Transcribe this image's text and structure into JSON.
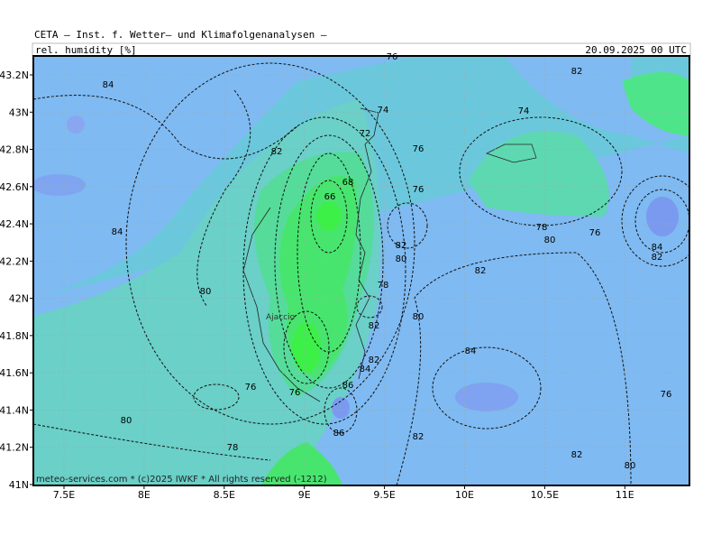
{
  "header": {
    "institute": "CETA — Inst. f. Wetter— und Klimafolgenanalysen —",
    "variable": "rel. humidity [%]",
    "datetime": "20.09.2025 00 UTC"
  },
  "footer": "meteo-services.com * (c)2025 IWKF * All rights reserved (-1212)",
  "y_axis": [
    "43.2N",
    "43N",
    "42.8N",
    "42.6N",
    "42.4N",
    "42.2N",
    "42N",
    "41.8N",
    "41.6N",
    "41.4N",
    "41.2N",
    "41N"
  ],
  "x_axis": [
    "7.5E",
    "8E",
    "8.5E",
    "9E",
    "9.5E",
    "10E",
    "10.5E",
    "11E"
  ],
  "town": "Ajaccio",
  "contour_labels": [
    "84",
    "82",
    "84",
    "80",
    "76",
    "78",
    "80",
    "76",
    "74",
    "72",
    "68",
    "66",
    "76",
    "76",
    "82",
    "80",
    "78",
    "82",
    "80",
    "82",
    "78",
    "80",
    "76",
    "84",
    "82",
    "82",
    "74",
    "84",
    "82",
    "82",
    "80",
    "76",
    "82",
    "84",
    "86",
    "86",
    "76"
  ]
}
